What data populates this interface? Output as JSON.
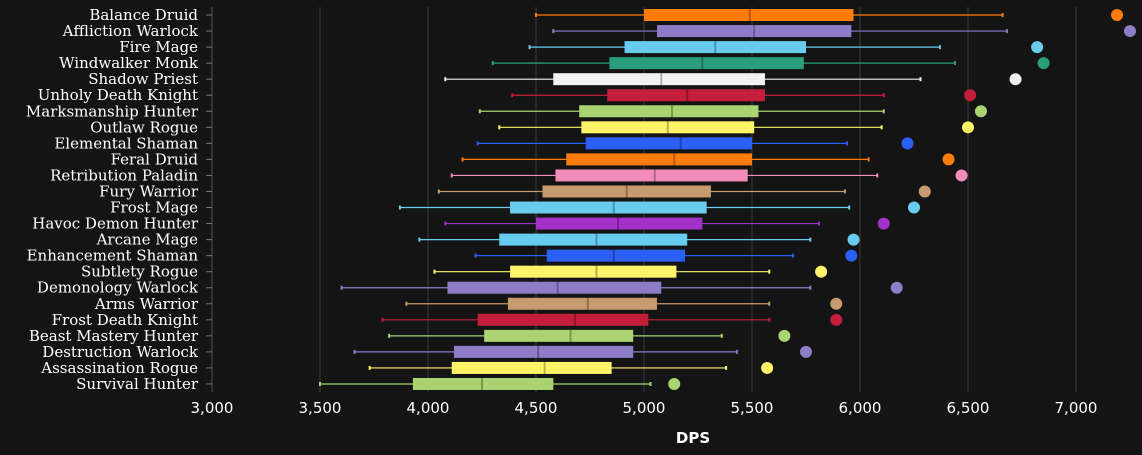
{
  "chart_data": {
    "type": "box",
    "xlabel": "DPS",
    "xlim": [
      3000,
      7250
    ],
    "xticks": [
      "3,000",
      "3,500",
      "4,000",
      "4,500",
      "5,000",
      "5,500",
      "6,000",
      "6,500",
      "7,000"
    ],
    "grid": "vertical",
    "series": [
      {
        "name": "Balance Druid",
        "color": "#ff7c0a",
        "min": 4500,
        "q1": 5000,
        "median": 5490,
        "q3": 5970,
        "max": 6660,
        "outlier": 7190
      },
      {
        "name": "Affliction Warlock",
        "color": "#8f7cc8",
        "min": 4580,
        "q1": 5060,
        "median": 5510,
        "q3": 5960,
        "max": 6680,
        "outlier": 7250
      },
      {
        "name": "Fire Mage",
        "color": "#68ccef",
        "min": 4470,
        "q1": 4910,
        "median": 5330,
        "q3": 5750,
        "max": 6370,
        "outlier": 6820
      },
      {
        "name": "Windwalker Monk",
        "color": "#2a9e7c",
        "min": 4300,
        "q1": 4840,
        "median": 5270,
        "q3": 5740,
        "max": 6440,
        "outlier": 6850
      },
      {
        "name": "Shadow Priest",
        "color": "#f2f2f2",
        "min": 4080,
        "q1": 4580,
        "median": 5080,
        "q3": 5560,
        "max": 6280,
        "outlier": 6720
      },
      {
        "name": "Unholy Death Knight",
        "color": "#c41e3a",
        "min": 4390,
        "q1": 4830,
        "median": 5200,
        "q3": 5560,
        "max": 6110,
        "outlier": 6510
      },
      {
        "name": "Marksmanship Hunter",
        "color": "#aad372",
        "min": 4240,
        "q1": 4700,
        "median": 5130,
        "q3": 5530,
        "max": 6110,
        "outlier": 6560
      },
      {
        "name": "Outlaw Rogue",
        "color": "#fff468",
        "min": 4330,
        "q1": 4710,
        "median": 5110,
        "q3": 5510,
        "max": 6100,
        "outlier": 6500
      },
      {
        "name": "Elemental Shaman",
        "color": "#2c5ff5",
        "min": 4230,
        "q1": 4730,
        "median": 5170,
        "q3": 5500,
        "max": 5940,
        "outlier": 6220
      },
      {
        "name": "Feral Druid",
        "color": "#ff7c0a",
        "min": 4160,
        "q1": 4640,
        "median": 5140,
        "q3": 5500,
        "max": 6040,
        "outlier": 6410
      },
      {
        "name": "Retribution Paladin",
        "color": "#f48cba",
        "min": 4110,
        "q1": 4590,
        "median": 5050,
        "q3": 5480,
        "max": 6080,
        "outlier": 6470
      },
      {
        "name": "Fury Warrior",
        "color": "#c69b6d",
        "min": 4050,
        "q1": 4530,
        "median": 4920,
        "q3": 5310,
        "max": 5930,
        "outlier": 6300
      },
      {
        "name": "Frost Mage",
        "color": "#68ccef",
        "min": 3870,
        "q1": 4380,
        "median": 4860,
        "q3": 5290,
        "max": 5950,
        "outlier": 6250
      },
      {
        "name": "Havoc Demon Hunter",
        "color": "#a330c9",
        "min": 4080,
        "q1": 4500,
        "median": 4880,
        "q3": 5270,
        "max": 5810,
        "outlier": 6110
      },
      {
        "name": "Arcane Mage",
        "color": "#68ccef",
        "min": 3960,
        "q1": 4330,
        "median": 4780,
        "q3": 5200,
        "max": 5770,
        "outlier": 5970
      },
      {
        "name": "Enhancement Shaman",
        "color": "#2c5ff5",
        "min": 4220,
        "q1": 4550,
        "median": 4860,
        "q3": 5190,
        "max": 5690,
        "outlier": 5960
      },
      {
        "name": "Subtlety Rogue",
        "color": "#fff468",
        "min": 4030,
        "q1": 4380,
        "median": 4780,
        "q3": 5150,
        "max": 5580,
        "outlier": 5820
      },
      {
        "name": "Demonology Warlock",
        "color": "#8f7cc8",
        "min": 3600,
        "q1": 4090,
        "median": 4600,
        "q3": 5080,
        "max": 5770,
        "outlier": 6170
      },
      {
        "name": "Arms Warrior",
        "color": "#c69b6d",
        "min": 3900,
        "q1": 4370,
        "median": 4740,
        "q3": 5060,
        "max": 5580,
        "outlier": 5890
      },
      {
        "name": "Frost Death Knight",
        "color": "#c41e3a",
        "min": 3790,
        "q1": 4230,
        "median": 4680,
        "q3": 5020,
        "max": 5580,
        "outlier": 5890
      },
      {
        "name": "Beast Mastery Hunter",
        "color": "#aad372",
        "min": 3820,
        "q1": 4260,
        "median": 4660,
        "q3": 4950,
        "max": 5360,
        "outlier": 5650
      },
      {
        "name": "Destruction Warlock",
        "color": "#8f7cc8",
        "min": 3660,
        "q1": 4120,
        "median": 4510,
        "q3": 4950,
        "max": 5430,
        "outlier": 5750
      },
      {
        "name": "Assassination Rogue",
        "color": "#fff468",
        "min": 3730,
        "q1": 4110,
        "median": 4540,
        "q3": 4850,
        "max": 5380,
        "outlier": 5570
      },
      {
        "name": "Survival Hunter",
        "color": "#aad372",
        "min": 3500,
        "q1": 3930,
        "median": 4250,
        "q3": 4580,
        "max": 5030,
        "outlier": 5140
      }
    ]
  }
}
